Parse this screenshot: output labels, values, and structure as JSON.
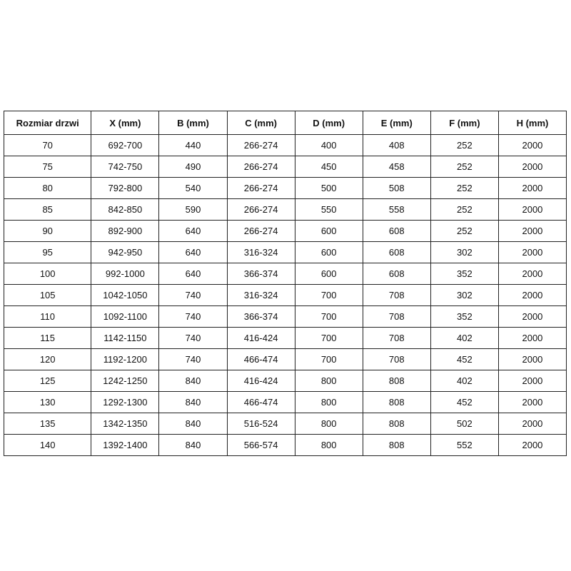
{
  "theme": {
    "background": "#ffffff",
    "border_color": "#222222",
    "text_color": "#111111"
  },
  "table": {
    "name": "door-size-specification-table",
    "headers": [
      "Rozmiar drzwi",
      "X (mm)",
      "B (mm)",
      "C (mm)",
      "D (mm)",
      "E (mm)",
      "F (mm)",
      "H (mm)"
    ],
    "rows": [
      [
        "70",
        "692-700",
        "440",
        "266-274",
        "400",
        "408",
        "252",
        "2000"
      ],
      [
        "75",
        "742-750",
        "490",
        "266-274",
        "450",
        "458",
        "252",
        "2000"
      ],
      [
        "80",
        "792-800",
        "540",
        "266-274",
        "500",
        "508",
        "252",
        "2000"
      ],
      [
        "85",
        "842-850",
        "590",
        "266-274",
        "550",
        "558",
        "252",
        "2000"
      ],
      [
        "90",
        "892-900",
        "640",
        "266-274",
        "600",
        "608",
        "252",
        "2000"
      ],
      [
        "95",
        "942-950",
        "640",
        "316-324",
        "600",
        "608",
        "302",
        "2000"
      ],
      [
        "100",
        "992-1000",
        "640",
        "366-374",
        "600",
        "608",
        "352",
        "2000"
      ],
      [
        "105",
        "1042-1050",
        "740",
        "316-324",
        "700",
        "708",
        "302",
        "2000"
      ],
      [
        "110",
        "1092-1100",
        "740",
        "366-374",
        "700",
        "708",
        "352",
        "2000"
      ],
      [
        "115",
        "1142-1150",
        "740",
        "416-424",
        "700",
        "708",
        "402",
        "2000"
      ],
      [
        "120",
        "1192-1200",
        "740",
        "466-474",
        "700",
        "708",
        "452",
        "2000"
      ],
      [
        "125",
        "1242-1250",
        "840",
        "416-424",
        "800",
        "808",
        "402",
        "2000"
      ],
      [
        "130",
        "1292-1300",
        "840",
        "466-474",
        "800",
        "808",
        "452",
        "2000"
      ],
      [
        "135",
        "1342-1350",
        "840",
        "516-524",
        "800",
        "808",
        "502",
        "2000"
      ],
      [
        "140",
        "1392-1400",
        "840",
        "566-574",
        "800",
        "808",
        "552",
        "2000"
      ]
    ]
  }
}
